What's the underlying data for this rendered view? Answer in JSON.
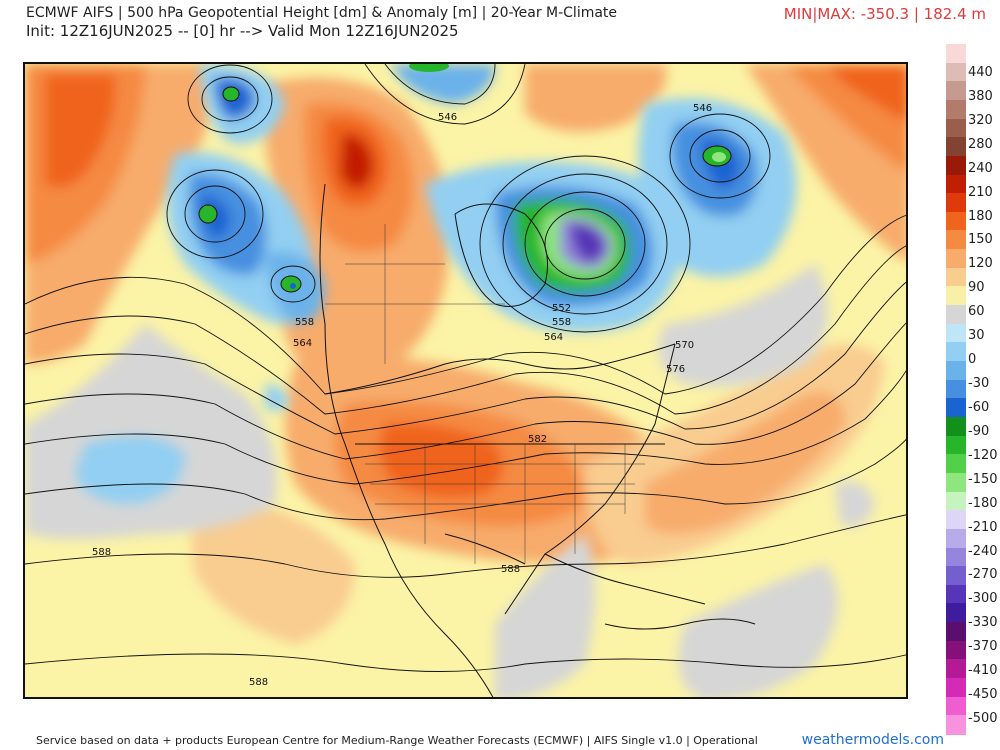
{
  "header": {
    "title": "ECMWF AIFS | 500 hPa Geopotential Height [dm] & Anomaly [m] | 20-Year M-Climate",
    "subtitle": "Init: 12Z16JUN2025 -- [0] hr --> Valid Mon 12Z16JUN2025",
    "minmax": "MIN|MAX: -350.3 | 182.4 m"
  },
  "map": {
    "contour_labels": [
      "546",
      "546",
      "552",
      "558",
      "564",
      "558",
      "564",
      "570",
      "576",
      "582",
      "588",
      "588",
      "588"
    ]
  },
  "colorbar": {
    "labels": [
      "440",
      "380",
      "320",
      "280",
      "240",
      "210",
      "180",
      "150",
      "120",
      "90",
      "60",
      "30",
      "0",
      "-30",
      "-60",
      "-90",
      "-120",
      "-150",
      "-180",
      "-210",
      "-240",
      "-270",
      "-300",
      "-330",
      "-370",
      "-410",
      "-450",
      "-500"
    ],
    "colors": [
      "#f9d8d8",
      "#dcbcb4",
      "#c79a8f",
      "#b27b6c",
      "#9c5e4c",
      "#834232",
      "#9a1a0a",
      "#c21e06",
      "#e03a0c",
      "#f0641e",
      "#f58a43",
      "#f7ac6c",
      "#f9cc90",
      "#f8f0a8",
      "#d6d6d6",
      "#bfe6f7",
      "#92cff2",
      "#6cb2ea",
      "#4790e0",
      "#1c63d2",
      "#13901c",
      "#27b52c",
      "#52d049",
      "#8fe57e",
      "#c6f4bf",
      "#ddd6f6",
      "#b8abe9",
      "#9585dc",
      "#735fcd",
      "#5636b6",
      "#3e1c9c",
      "#5a0e6e",
      "#86107a",
      "#b31a96",
      "#d52ab6",
      "#ee5ed0",
      "#f792df"
    ]
  },
  "footer": {
    "credit": "Service based on data + products European Centre for Medium-Range Weather Forecasts (ECMWF) | AIFS Single v1.0 | Operational",
    "brand": "weathermodels.com"
  }
}
